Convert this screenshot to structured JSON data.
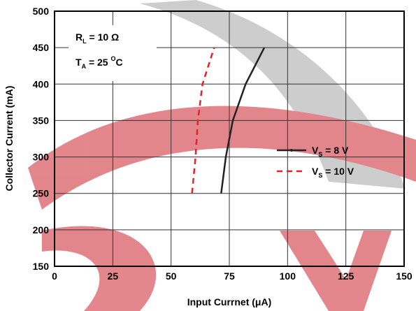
{
  "chart_data": {
    "type": "line",
    "xlabel": "Input Currnet (μA)",
    "ylabel": "Collector Current (mA)",
    "xlim": [
      0,
      150
    ],
    "xticks": [
      0,
      25,
      50,
      75,
      100,
      125,
      150
    ],
    "ylim": [
      150,
      500
    ],
    "yticks": [
      150,
      200,
      250,
      300,
      350,
      400,
      450,
      500
    ],
    "grid": true,
    "annotations": [
      {
        "main": "R",
        "sub": "L",
        "rest": " = 10 Ω"
      },
      {
        "main": "T",
        "sub": "A",
        "rest": " = 25 ",
        "sup": "O",
        "end": "C"
      }
    ],
    "series": [
      {
        "name": "V",
        "name_sub": "S",
        "name_suffix": " = 8 V",
        "color": "#222222",
        "dash": false,
        "x": [
          71.5,
          73.5,
          76.5,
          82,
          90
        ],
        "values": [
          250,
          300,
          350,
          400,
          450
        ]
      },
      {
        "name": "V",
        "name_sub": "S",
        "name_suffix": " = 10 V",
        "color": "#e8202a",
        "dash": true,
        "x": [
          59,
          60.5,
          61.5,
          63.5,
          68.5
        ],
        "values": [
          250,
          300,
          350,
          400,
          450
        ]
      }
    ]
  }
}
